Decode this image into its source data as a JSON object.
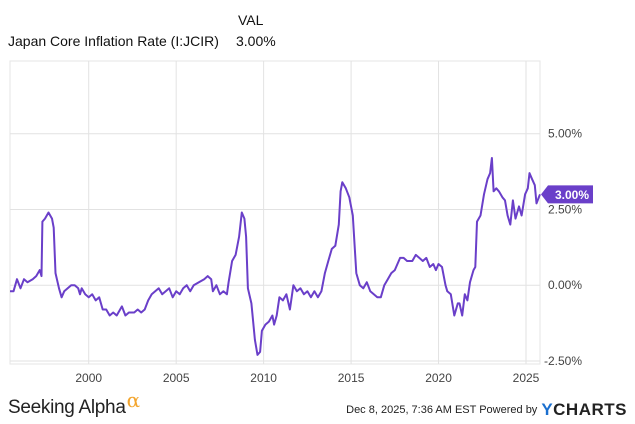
{
  "header": {
    "column_label": "VAL",
    "series_name": "Japan Core Inflation Rate (I:JCIR)",
    "series_value": "3.00%"
  },
  "footer": {
    "brand": "Seeking Alpha",
    "brand_symbol": "α",
    "timestamp": "Dec 8, 2025, 7:36 AM EST Powered by",
    "ycharts_y": "Y",
    "ycharts_rest": "CHARTS"
  },
  "colors": {
    "line": "#6a3fc9",
    "grid": "#e2e2e2",
    "axis_text": "#444444",
    "badge_bg": "#6a3fc9",
    "badge_text": "#ffffff"
  },
  "chart_data": {
    "type": "line",
    "title": "Japan Core Inflation Rate (I:JCIR)",
    "xlabel": "",
    "ylabel": "",
    "xlim": [
      1995.5,
      2025.8
    ],
    "ylim": [
      -2.6,
      7.4
    ],
    "x_ticks": [
      2000,
      2005,
      2010,
      2015,
      2020,
      2025
    ],
    "x_tick_labels": [
      "2000",
      "2005",
      "2010",
      "2015",
      "2020",
      "2025"
    ],
    "y_ticks": [
      5.0,
      2.5,
      0.0,
      -2.5
    ],
    "y_tick_labels": [
      "5.00%",
      "2.50%",
      "0.00%",
      "-2.50%"
    ],
    "last_value_label": "3.00%",
    "last_value": 3.0,
    "series": [
      {
        "name": "Japan Core Inflation Rate (I:JCIR)",
        "points": [
          [
            1995.5,
            -0.2
          ],
          [
            1995.7,
            -0.2
          ],
          [
            1995.9,
            0.2
          ],
          [
            1996.1,
            -0.1
          ],
          [
            1996.3,
            0.2
          ],
          [
            1996.5,
            0.1
          ],
          [
            1996.8,
            0.2
          ],
          [
            1997.0,
            0.3
          ],
          [
            1997.2,
            0.5
          ],
          [
            1997.3,
            0.3
          ],
          [
            1997.35,
            2.1
          ],
          [
            1997.5,
            2.2
          ],
          [
            1997.7,
            2.4
          ],
          [
            1997.9,
            2.2
          ],
          [
            1998.0,
            1.9
          ],
          [
            1998.1,
            0.4
          ],
          [
            1998.3,
            -0.1
          ],
          [
            1998.45,
            -0.4
          ],
          [
            1998.6,
            -0.2
          ],
          [
            1998.8,
            -0.1
          ],
          [
            1999.0,
            0.0
          ],
          [
            1999.2,
            0.0
          ],
          [
            1999.4,
            -0.1
          ],
          [
            1999.5,
            -0.3
          ],
          [
            1999.6,
            -0.1
          ],
          [
            1999.8,
            -0.3
          ],
          [
            2000.0,
            -0.4
          ],
          [
            2000.2,
            -0.3
          ],
          [
            2000.4,
            -0.5
          ],
          [
            2000.6,
            -0.4
          ],
          [
            2000.8,
            -0.8
          ],
          [
            2001.0,
            -0.8
          ],
          [
            2001.2,
            -1.0
          ],
          [
            2001.4,
            -0.9
          ],
          [
            2001.6,
            -1.0
          ],
          [
            2001.9,
            -0.7
          ],
          [
            2002.1,
            -1.0
          ],
          [
            2002.3,
            -0.9
          ],
          [
            2002.6,
            -0.9
          ],
          [
            2002.8,
            -0.8
          ],
          [
            2003.0,
            -0.9
          ],
          [
            2003.2,
            -0.8
          ],
          [
            2003.4,
            -0.5
          ],
          [
            2003.6,
            -0.3
          ],
          [
            2003.8,
            -0.2
          ],
          [
            2004.0,
            -0.1
          ],
          [
            2004.2,
            -0.3
          ],
          [
            2004.4,
            -0.2
          ],
          [
            2004.6,
            -0.1
          ],
          [
            2004.8,
            -0.4
          ],
          [
            2005.0,
            -0.2
          ],
          [
            2005.2,
            -0.3
          ],
          [
            2005.4,
            -0.1
          ],
          [
            2005.6,
            0.0
          ],
          [
            2005.8,
            -0.2
          ],
          [
            2006.0,
            0.0
          ],
          [
            2006.3,
            0.1
          ],
          [
            2006.6,
            0.2
          ],
          [
            2006.8,
            0.3
          ],
          [
            2007.0,
            0.2
          ],
          [
            2007.1,
            -0.2
          ],
          [
            2007.3,
            0.0
          ],
          [
            2007.5,
            -0.3
          ],
          [
            2007.7,
            -0.2
          ],
          [
            2007.9,
            -0.3
          ],
          [
            2008.0,
            0.1
          ],
          [
            2008.2,
            0.8
          ],
          [
            2008.4,
            1.0
          ],
          [
            2008.6,
            1.6
          ],
          [
            2008.75,
            2.4
          ],
          [
            2008.9,
            2.2
          ],
          [
            2009.0,
            1.6
          ],
          [
            2009.1,
            -0.1
          ],
          [
            2009.3,
            -0.6
          ],
          [
            2009.5,
            -1.8
          ],
          [
            2009.65,
            -2.3
          ],
          [
            2009.8,
            -2.2
          ],
          [
            2009.9,
            -1.5
          ],
          [
            2010.1,
            -1.3
          ],
          [
            2010.3,
            -1.2
          ],
          [
            2010.5,
            -1.0
          ],
          [
            2010.6,
            -1.3
          ],
          [
            2010.75,
            -1.0
          ],
          [
            2010.9,
            -0.4
          ],
          [
            2011.1,
            -0.5
          ],
          [
            2011.3,
            -0.3
          ],
          [
            2011.5,
            -0.8
          ],
          [
            2011.7,
            0.0
          ],
          [
            2011.9,
            -0.2
          ],
          [
            2012.1,
            -0.1
          ],
          [
            2012.3,
            -0.3
          ],
          [
            2012.5,
            -0.2
          ],
          [
            2012.7,
            -0.4
          ],
          [
            2012.9,
            -0.2
          ],
          [
            2013.1,
            -0.4
          ],
          [
            2013.3,
            -0.2
          ],
          [
            2013.5,
            0.4
          ],
          [
            2013.7,
            0.8
          ],
          [
            2013.9,
            1.2
          ],
          [
            2014.1,
            1.3
          ],
          [
            2014.3,
            2.0
          ],
          [
            2014.4,
            3.1
          ],
          [
            2014.5,
            3.4
          ],
          [
            2014.7,
            3.2
          ],
          [
            2014.9,
            2.9
          ],
          [
            2015.1,
            2.3
          ],
          [
            2015.3,
            0.4
          ],
          [
            2015.5,
            0.0
          ],
          [
            2015.7,
            -0.1
          ],
          [
            2015.9,
            0.1
          ],
          [
            2016.1,
            -0.2
          ],
          [
            2016.3,
            -0.3
          ],
          [
            2016.5,
            -0.4
          ],
          [
            2016.7,
            -0.4
          ],
          [
            2016.9,
            0.0
          ],
          [
            2017.1,
            0.2
          ],
          [
            2017.3,
            0.4
          ],
          [
            2017.5,
            0.5
          ],
          [
            2017.8,
            0.9
          ],
          [
            2018.0,
            0.9
          ],
          [
            2018.2,
            0.8
          ],
          [
            2018.5,
            0.8
          ],
          [
            2018.7,
            1.0
          ],
          [
            2018.9,
            0.9
          ],
          [
            2019.1,
            0.8
          ],
          [
            2019.3,
            0.9
          ],
          [
            2019.5,
            0.6
          ],
          [
            2019.7,
            0.7
          ],
          [
            2019.85,
            0.5
          ],
          [
            2020.0,
            0.7
          ],
          [
            2020.2,
            0.6
          ],
          [
            2020.4,
            0.0
          ],
          [
            2020.5,
            -0.2
          ],
          [
            2020.7,
            -0.3
          ],
          [
            2020.9,
            -1.0
          ],
          [
            2021.1,
            -0.6
          ],
          [
            2021.2,
            -0.6
          ],
          [
            2021.35,
            -1.0
          ],
          [
            2021.5,
            -0.3
          ],
          [
            2021.65,
            -0.5
          ],
          [
            2021.8,
            0.1
          ],
          [
            2022.0,
            0.5
          ],
          [
            2022.1,
            0.6
          ],
          [
            2022.2,
            2.1
          ],
          [
            2022.4,
            2.3
          ],
          [
            2022.6,
            3.0
          ],
          [
            2022.8,
            3.5
          ],
          [
            2022.95,
            3.7
          ],
          [
            2023.05,
            4.2
          ],
          [
            2023.15,
            3.1
          ],
          [
            2023.3,
            3.2
          ],
          [
            2023.45,
            3.1
          ],
          [
            2023.65,
            2.9
          ],
          [
            2023.8,
            2.8
          ],
          [
            2023.95,
            2.3
          ],
          [
            2024.1,
            2.0
          ],
          [
            2024.25,
            2.8
          ],
          [
            2024.4,
            2.2
          ],
          [
            2024.6,
            2.6
          ],
          [
            2024.75,
            2.3
          ],
          [
            2024.95,
            3.0
          ],
          [
            2025.1,
            3.2
          ],
          [
            2025.2,
            3.7
          ],
          [
            2025.35,
            3.5
          ],
          [
            2025.5,
            3.3
          ],
          [
            2025.6,
            2.7
          ],
          [
            2025.8,
            3.0
          ]
        ]
      }
    ]
  }
}
